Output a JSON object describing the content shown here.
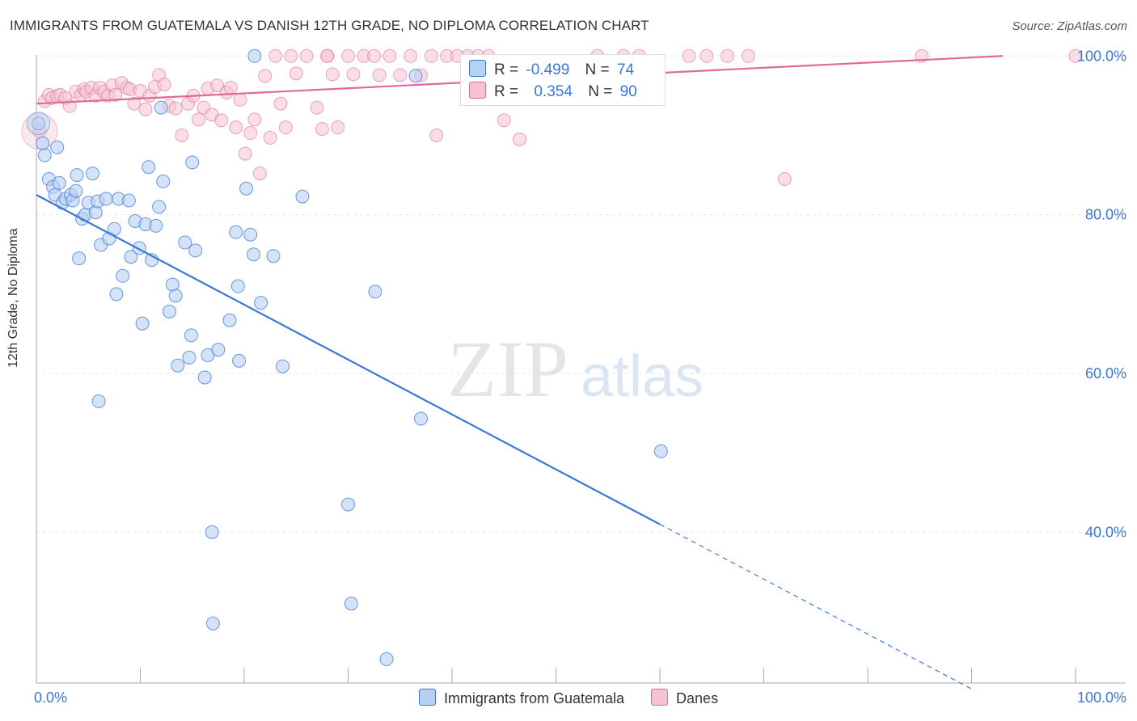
{
  "title": "IMMIGRANTS FROM GUATEMALA VS DANISH 12TH GRADE, NO DIPLOMA CORRELATION CHART",
  "source": "Source: ZipAtlas.com",
  "watermark": {
    "zip": "ZIP",
    "atlas": "atlas"
  },
  "stats": {
    "blue": {
      "r_label": "R =",
      "r_value": "-0.499",
      "n_label": "N =",
      "n_value": "74"
    },
    "pink": {
      "r_label": "R =",
      "r_value": "0.354",
      "n_label": "N =",
      "n_value": "90"
    }
  },
  "legend": {
    "blue_label": "Immigrants from Guatemala",
    "pink_label": "Danes"
  },
  "colors": {
    "blue": "#3a78d8",
    "blue_fill": "#b8d0f2",
    "pink": "#e06a95",
    "pink_fill": "#f6c2d4",
    "grid": "#e6e6e6"
  },
  "chart_data": {
    "type": "scatter",
    "xlabel": "",
    "ylabel": "12th Grade, No Diploma",
    "xlim": [
      0,
      100
    ],
    "ylim": [
      21,
      104
    ],
    "x_tick_labels": [
      {
        "x": 0,
        "label": "0.0%"
      },
      {
        "x": 100,
        "label": "100.0%"
      }
    ],
    "y_tick_labels": [
      {
        "y": 100,
        "label": "100.0%"
      },
      {
        "y": 80,
        "label": "80.0%"
      },
      {
        "y": 60,
        "label": "60.0%"
      },
      {
        "y": 40,
        "label": "40.0%"
      }
    ],
    "grid": true,
    "series": [
      {
        "name": "Immigrants from Guatemala",
        "color": "#3a78d8",
        "trend": {
          "x0": 0,
          "y0": 82.5,
          "x1": 60,
          "y1": 41,
          "dashed_to_x": 90
        },
        "points": [
          [
            0.2,
            91.5
          ],
          [
            0.6,
            89.0
          ],
          [
            0.8,
            87.5
          ],
          [
            1.2,
            84.5
          ],
          [
            1.6,
            83.5
          ],
          [
            1.8,
            82.5
          ],
          [
            2.2,
            84.0
          ],
          [
            2.5,
            81.5
          ],
          [
            2.8,
            82.0
          ],
          [
            3.3,
            82.5
          ],
          [
            3.5,
            81.8
          ],
          [
            3.8,
            83.0
          ],
          [
            3.9,
            85.0
          ],
          [
            4.1,
            74.5
          ],
          [
            4.4,
            79.5
          ],
          [
            4.7,
            80.0
          ],
          [
            5.0,
            81.5
          ],
          [
            5.4,
            85.2
          ],
          [
            5.7,
            80.3
          ],
          [
            5.9,
            81.7
          ],
          [
            6.2,
            76.2
          ],
          [
            6.7,
            82.0
          ],
          [
            7.0,
            77.0
          ],
          [
            7.5,
            78.2
          ],
          [
            7.7,
            70.0
          ],
          [
            7.9,
            82.0
          ],
          [
            8.3,
            72.3
          ],
          [
            8.9,
            81.8
          ],
          [
            9.1,
            74.7
          ],
          [
            9.5,
            79.2
          ],
          [
            9.9,
            75.8
          ],
          [
            10.2,
            66.3
          ],
          [
            10.5,
            78.8
          ],
          [
            10.8,
            86.0
          ],
          [
            11.1,
            74.3
          ],
          [
            11.5,
            78.6
          ],
          [
            11.8,
            81.0
          ],
          [
            12.0,
            93.5
          ],
          [
            12.2,
            84.2
          ],
          [
            12.8,
            67.8
          ],
          [
            13.1,
            71.2
          ],
          [
            13.4,
            69.8
          ],
          [
            13.6,
            61.0
          ],
          [
            14.3,
            76.5
          ],
          [
            14.7,
            62.0
          ],
          [
            14.9,
            64.8
          ],
          [
            15.0,
            86.6
          ],
          [
            15.3,
            75.5
          ],
          [
            16.2,
            59.5
          ],
          [
            16.5,
            62.3
          ],
          [
            16.9,
            40.0
          ],
          [
            17.0,
            28.5
          ],
          [
            17.5,
            63.0
          ],
          [
            18.6,
            66.7
          ],
          [
            19.2,
            77.8
          ],
          [
            19.4,
            71.0
          ],
          [
            19.5,
            61.6
          ],
          [
            20.2,
            83.3
          ],
          [
            20.6,
            77.5
          ],
          [
            20.9,
            75.0
          ],
          [
            21.6,
            68.9
          ],
          [
            22.8,
            74.8
          ],
          [
            23.7,
            60.9
          ],
          [
            25.6,
            82.3
          ],
          [
            30.0,
            43.5
          ],
          [
            30.3,
            31.0
          ],
          [
            32.6,
            70.3
          ],
          [
            33.7,
            24.0
          ],
          [
            36.5,
            97.5
          ],
          [
            37.0,
            54.3
          ],
          [
            60.1,
            50.2
          ],
          [
            21.0,
            100.0
          ],
          [
            6.0,
            56.5
          ],
          [
            2.0,
            88.5
          ]
        ]
      },
      {
        "name": "Danes",
        "color": "#e06a95",
        "trend": {
          "x0": 0,
          "y0": 94.0,
          "x1": 93,
          "y1": 100.0
        },
        "points": [
          [
            0.3,
            90.5
          ],
          [
            0.8,
            94.3
          ],
          [
            1.2,
            95.1
          ],
          [
            1.5,
            94.7
          ],
          [
            2.0,
            95.0
          ],
          [
            2.3,
            95.1
          ],
          [
            2.8,
            94.7
          ],
          [
            3.2,
            93.7
          ],
          [
            3.8,
            95.5
          ],
          [
            4.3,
            95.1
          ],
          [
            4.6,
            95.8
          ],
          [
            4.8,
            95.5
          ],
          [
            5.3,
            96.0
          ],
          [
            5.7,
            95.0
          ],
          [
            6.1,
            96.0
          ],
          [
            6.5,
            95.5
          ],
          [
            6.9,
            95.0
          ],
          [
            7.3,
            96.3
          ],
          [
            7.6,
            95.1
          ],
          [
            8.2,
            96.6
          ],
          [
            8.7,
            96.0
          ],
          [
            9.0,
            95.8
          ],
          [
            9.4,
            94.0
          ],
          [
            10.0,
            95.6
          ],
          [
            10.5,
            93.3
          ],
          [
            10.9,
            95.0
          ],
          [
            11.4,
            96.1
          ],
          [
            11.8,
            97.6
          ],
          [
            12.3,
            96.4
          ],
          [
            12.8,
            93.7
          ],
          [
            13.4,
            93.4
          ],
          [
            14.0,
            90.0
          ],
          [
            14.6,
            94.0
          ],
          [
            15.1,
            95.0
          ],
          [
            15.6,
            92.0
          ],
          [
            16.1,
            93.5
          ],
          [
            16.5,
            95.9
          ],
          [
            16.9,
            92.6
          ],
          [
            17.4,
            96.3
          ],
          [
            17.8,
            91.9
          ],
          [
            18.3,
            95.4
          ],
          [
            18.7,
            96.0
          ],
          [
            19.2,
            91.0
          ],
          [
            19.6,
            94.5
          ],
          [
            20.1,
            87.7
          ],
          [
            20.6,
            90.3
          ],
          [
            21.0,
            92.0
          ],
          [
            21.5,
            85.2
          ],
          [
            22.0,
            97.5
          ],
          [
            22.5,
            89.7
          ],
          [
            23.0,
            100.0
          ],
          [
            23.5,
            94.0
          ],
          [
            24.0,
            91.0
          ],
          [
            24.5,
            100.0
          ],
          [
            25.0,
            97.8
          ],
          [
            26.0,
            100.0
          ],
          [
            27.0,
            93.5
          ],
          [
            27.5,
            90.8
          ],
          [
            28.0,
            100.0
          ],
          [
            28.5,
            97.7
          ],
          [
            29.0,
            91.0
          ],
          [
            30.0,
            100.0
          ],
          [
            30.5,
            97.7
          ],
          [
            31.5,
            100.0
          ],
          [
            32.5,
            100.0
          ],
          [
            33.0,
            97.6
          ],
          [
            34.0,
            100.0
          ],
          [
            35.0,
            97.6
          ],
          [
            36.0,
            100.0
          ],
          [
            37.0,
            97.6
          ],
          [
            38.0,
            100.0
          ],
          [
            38.5,
            90.0
          ],
          [
            39.5,
            100.0
          ],
          [
            40.5,
            100.0
          ],
          [
            41.5,
            100.0
          ],
          [
            42.5,
            100.0
          ],
          [
            43.5,
            100.0
          ],
          [
            45.0,
            91.9
          ],
          [
            46.5,
            89.5
          ],
          [
            54.0,
            100.0
          ],
          [
            56.5,
            100.0
          ],
          [
            58.0,
            100.0
          ],
          [
            62.8,
            100.0
          ],
          [
            64.5,
            100.0
          ],
          [
            66.5,
            100.0
          ],
          [
            68.5,
            100.0
          ],
          [
            72.0,
            84.5
          ],
          [
            85.2,
            100.0
          ],
          [
            100.0,
            100.0
          ],
          [
            28.0,
            100.0
          ]
        ]
      }
    ]
  }
}
